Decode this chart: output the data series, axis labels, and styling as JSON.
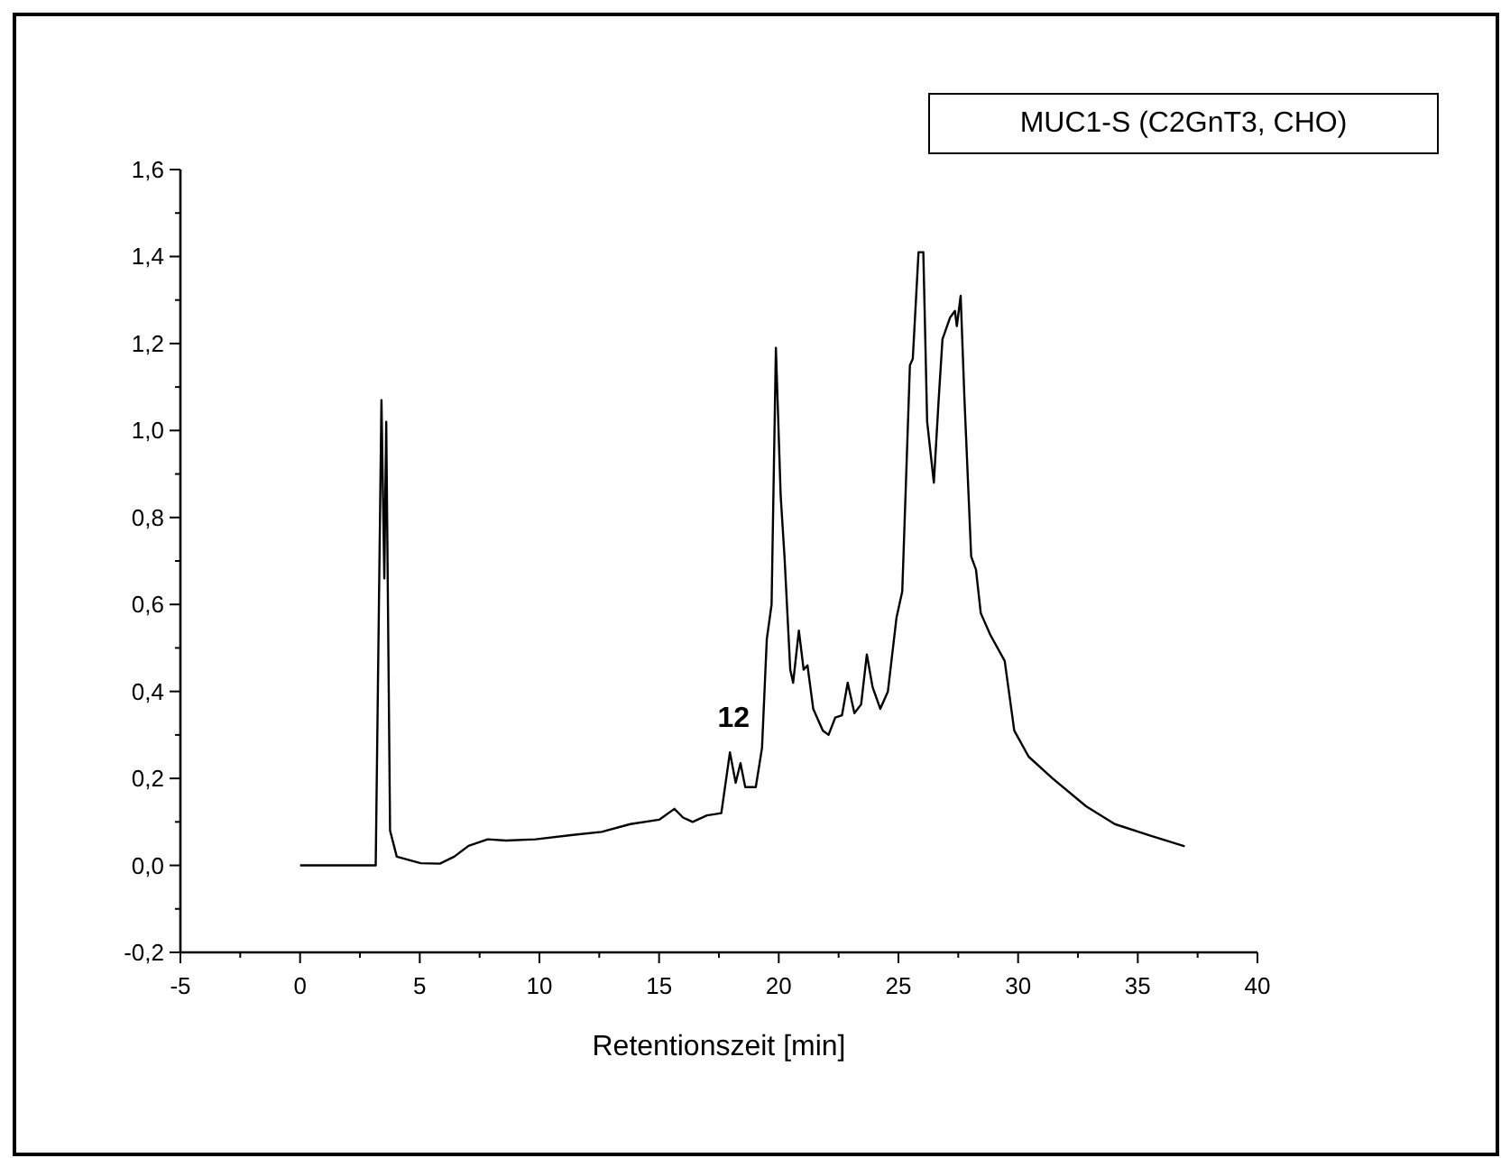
{
  "chart_data": {
    "type": "line",
    "xlabel": "Retentionszeit [min]",
    "xlim": [
      -5,
      40
    ],
    "xticks": [
      -5,
      0,
      5,
      10,
      15,
      20,
      25,
      30,
      35,
      40
    ],
    "ylim": [
      -0.2,
      1.6
    ],
    "yticks": [
      {
        "value": -0.2,
        "label": "-0,2"
      },
      {
        "value": 0,
        "label": "0,0"
      },
      {
        "value": 0.2,
        "label": "0,2"
      },
      {
        "value": 0.4,
        "label": "0,4"
      },
      {
        "value": 0.6,
        "label": "0,6"
      },
      {
        "value": 0.8,
        "label": "0,8"
      },
      {
        "value": 1.0,
        "label": "1,0"
      },
      {
        "value": 1.2,
        "label": "1,2"
      },
      {
        "value": 1.4,
        "label": "1,4"
      },
      {
        "value": 1.6,
        "label": "1,6"
      }
    ],
    "grid": false,
    "legend": "top right",
    "marker": "none",
    "line_style": "solid",
    "annotations": [
      {
        "text": "12",
        "x": 17.96,
        "y": 0.26
      }
    ],
    "series": [
      {
        "name": "MUC1-S (C2GnT3, CHO)",
        "color": "#000000",
        "x": [
          0,
          3.16,
          3.4,
          3.52,
          3.6,
          3.76,
          4.04,
          5.04,
          5.84,
          6.44,
          7.04,
          7.84,
          8.6,
          9.84,
          11.4,
          12.6,
          13.8,
          15.0,
          15.64,
          16.0,
          16.4,
          17.0,
          17.6,
          17.96,
          18.2,
          18.4,
          18.6,
          19.04,
          19.3,
          19.5,
          19.7,
          19.88,
          20.08,
          20.24,
          20.48,
          20.6,
          20.84,
          21.04,
          21.2,
          21.44,
          21.84,
          22.08,
          22.36,
          22.64,
          22.88,
          23.16,
          23.44,
          23.68,
          23.92,
          24.24,
          24.56,
          24.92,
          25.16,
          25.48,
          25.6,
          25.84,
          26.04,
          26.2,
          26.48,
          26.68,
          26.84,
          27.16,
          27.36,
          27.44,
          27.6,
          27.76,
          28.04,
          28.24,
          28.44,
          28.84,
          29.44,
          29.84,
          30.44,
          31.44,
          32.84,
          34.04,
          35.44,
          36.96
        ],
        "values": [
          0,
          0,
          1.07,
          0.66,
          1.02,
          0.08,
          0.02,
          0.005,
          0.004,
          0.02,
          0.045,
          0.06,
          0.057,
          0.06,
          0.07,
          0.077,
          0.095,
          0.105,
          0.13,
          0.11,
          0.1,
          0.115,
          0.12,
          0.26,
          0.19,
          0.235,
          0.18,
          0.18,
          0.27,
          0.52,
          0.6,
          1.19,
          0.85,
          0.71,
          0.45,
          0.42,
          0.54,
          0.45,
          0.46,
          0.36,
          0.31,
          0.3,
          0.34,
          0.345,
          0.42,
          0.35,
          0.37,
          0.485,
          0.41,
          0.36,
          0.4,
          0.57,
          0.63,
          1.15,
          1.165,
          1.41,
          1.41,
          1.02,
          0.88,
          1.07,
          1.21,
          1.26,
          1.275,
          1.24,
          1.31,
          1.07,
          0.71,
          0.68,
          0.58,
          0.53,
          0.47,
          0.31,
          0.25,
          0.2,
          0.136,
          0.095,
          0.07,
          0.044
        ]
      }
    ]
  }
}
